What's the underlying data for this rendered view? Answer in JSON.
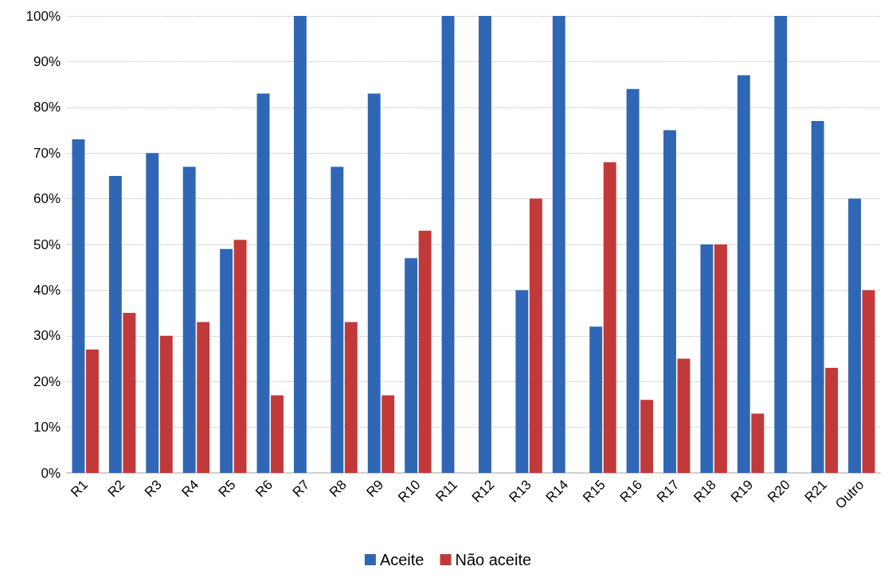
{
  "chart_data": {
    "type": "bar",
    "categories": [
      "R1",
      "R2",
      "R3",
      "R4",
      "R5",
      "R6",
      "R7",
      "R8",
      "R9",
      "R10",
      "R11",
      "R12",
      "R13",
      "R14",
      "R15",
      "R16",
      "R17",
      "R18",
      "R19",
      "R20",
      "R21",
      "Outro"
    ],
    "series": [
      {
        "name": "Aceite",
        "color": "#2f67b5",
        "values": [
          73,
          65,
          70,
          67,
          49,
          83,
          100,
          67,
          83,
          47,
          100,
          100,
          40,
          100,
          32,
          84,
          75,
          50,
          87,
          100,
          77,
          60
        ]
      },
      {
        "name": "Não aceite",
        "color": "#c2393a",
        "values": [
          27,
          35,
          30,
          33,
          51,
          17,
          null,
          33,
          17,
          53,
          null,
          null,
          60,
          null,
          68,
          16,
          25,
          50,
          13,
          null,
          23,
          40
        ]
      }
    ],
    "ylim": [
      0,
      100
    ],
    "yticks": [
      {
        "value": 0,
        "label": "0%"
      },
      {
        "value": 10,
        "label": "10%"
      },
      {
        "value": 20,
        "label": "20%"
      },
      {
        "value": 30,
        "label": "30%"
      },
      {
        "value": 40,
        "label": "40%"
      },
      {
        "value": 50,
        "label": "50%"
      },
      {
        "value": 60,
        "label": "60%"
      },
      {
        "value": 70,
        "label": "70%"
      },
      {
        "value": 80,
        "label": "80%"
      },
      {
        "value": 90,
        "label": "90%"
      },
      {
        "value": 100,
        "label": "100%"
      }
    ],
    "grid": "y",
    "legend": "bottom"
  }
}
